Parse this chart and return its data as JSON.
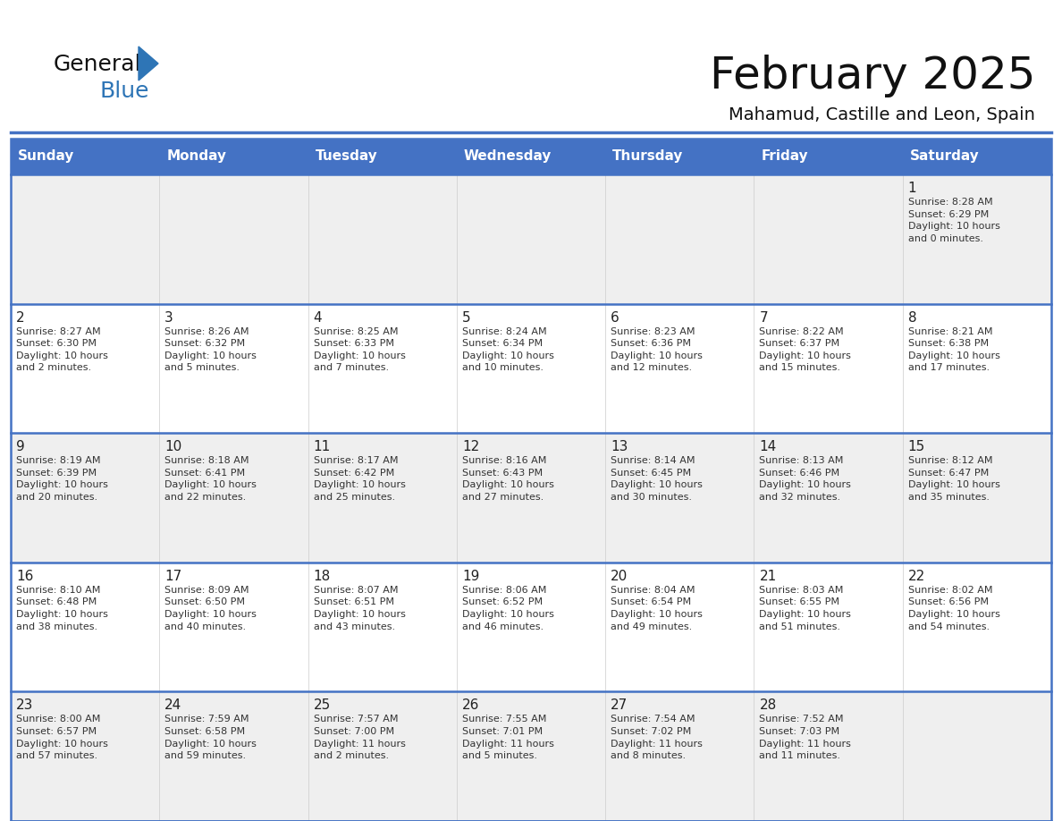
{
  "title": "February 2025",
  "subtitle": "Mahamud, Castille and Leon, Spain",
  "header_bg": "#4472C4",
  "header_text_color": "#FFFFFF",
  "cell_bg_light": "#EFEFEF",
  "cell_bg_white": "#FFFFFF",
  "separator_color": "#4472C4",
  "text_color": "#222222",
  "info_color": "#333333",
  "days_of_week": [
    "Sunday",
    "Monday",
    "Tuesday",
    "Wednesday",
    "Thursday",
    "Friday",
    "Saturday"
  ],
  "weeks": [
    [
      {
        "day": "",
        "info": ""
      },
      {
        "day": "",
        "info": ""
      },
      {
        "day": "",
        "info": ""
      },
      {
        "day": "",
        "info": ""
      },
      {
        "day": "",
        "info": ""
      },
      {
        "day": "",
        "info": ""
      },
      {
        "day": "1",
        "info": "Sunrise: 8:28 AM\nSunset: 6:29 PM\nDaylight: 10 hours\nand 0 minutes."
      }
    ],
    [
      {
        "day": "2",
        "info": "Sunrise: 8:27 AM\nSunset: 6:30 PM\nDaylight: 10 hours\nand 2 minutes."
      },
      {
        "day": "3",
        "info": "Sunrise: 8:26 AM\nSunset: 6:32 PM\nDaylight: 10 hours\nand 5 minutes."
      },
      {
        "day": "4",
        "info": "Sunrise: 8:25 AM\nSunset: 6:33 PM\nDaylight: 10 hours\nand 7 minutes."
      },
      {
        "day": "5",
        "info": "Sunrise: 8:24 AM\nSunset: 6:34 PM\nDaylight: 10 hours\nand 10 minutes."
      },
      {
        "day": "6",
        "info": "Sunrise: 8:23 AM\nSunset: 6:36 PM\nDaylight: 10 hours\nand 12 minutes."
      },
      {
        "day": "7",
        "info": "Sunrise: 8:22 AM\nSunset: 6:37 PM\nDaylight: 10 hours\nand 15 minutes."
      },
      {
        "day": "8",
        "info": "Sunrise: 8:21 AM\nSunset: 6:38 PM\nDaylight: 10 hours\nand 17 minutes."
      }
    ],
    [
      {
        "day": "9",
        "info": "Sunrise: 8:19 AM\nSunset: 6:39 PM\nDaylight: 10 hours\nand 20 minutes."
      },
      {
        "day": "10",
        "info": "Sunrise: 8:18 AM\nSunset: 6:41 PM\nDaylight: 10 hours\nand 22 minutes."
      },
      {
        "day": "11",
        "info": "Sunrise: 8:17 AM\nSunset: 6:42 PM\nDaylight: 10 hours\nand 25 minutes."
      },
      {
        "day": "12",
        "info": "Sunrise: 8:16 AM\nSunset: 6:43 PM\nDaylight: 10 hours\nand 27 minutes."
      },
      {
        "day": "13",
        "info": "Sunrise: 8:14 AM\nSunset: 6:45 PM\nDaylight: 10 hours\nand 30 minutes."
      },
      {
        "day": "14",
        "info": "Sunrise: 8:13 AM\nSunset: 6:46 PM\nDaylight: 10 hours\nand 32 minutes."
      },
      {
        "day": "15",
        "info": "Sunrise: 8:12 AM\nSunset: 6:47 PM\nDaylight: 10 hours\nand 35 minutes."
      }
    ],
    [
      {
        "day": "16",
        "info": "Sunrise: 8:10 AM\nSunset: 6:48 PM\nDaylight: 10 hours\nand 38 minutes."
      },
      {
        "day": "17",
        "info": "Sunrise: 8:09 AM\nSunset: 6:50 PM\nDaylight: 10 hours\nand 40 minutes."
      },
      {
        "day": "18",
        "info": "Sunrise: 8:07 AM\nSunset: 6:51 PM\nDaylight: 10 hours\nand 43 minutes."
      },
      {
        "day": "19",
        "info": "Sunrise: 8:06 AM\nSunset: 6:52 PM\nDaylight: 10 hours\nand 46 minutes."
      },
      {
        "day": "20",
        "info": "Sunrise: 8:04 AM\nSunset: 6:54 PM\nDaylight: 10 hours\nand 49 minutes."
      },
      {
        "day": "21",
        "info": "Sunrise: 8:03 AM\nSunset: 6:55 PM\nDaylight: 10 hours\nand 51 minutes."
      },
      {
        "day": "22",
        "info": "Sunrise: 8:02 AM\nSunset: 6:56 PM\nDaylight: 10 hours\nand 54 minutes."
      }
    ],
    [
      {
        "day": "23",
        "info": "Sunrise: 8:00 AM\nSunset: 6:57 PM\nDaylight: 10 hours\nand 57 minutes."
      },
      {
        "day": "24",
        "info": "Sunrise: 7:59 AM\nSunset: 6:58 PM\nDaylight: 10 hours\nand 59 minutes."
      },
      {
        "day": "25",
        "info": "Sunrise: 7:57 AM\nSunset: 7:00 PM\nDaylight: 11 hours\nand 2 minutes."
      },
      {
        "day": "26",
        "info": "Sunrise: 7:55 AM\nSunset: 7:01 PM\nDaylight: 11 hours\nand 5 minutes."
      },
      {
        "day": "27",
        "info": "Sunrise: 7:54 AM\nSunset: 7:02 PM\nDaylight: 11 hours\nand 8 minutes."
      },
      {
        "day": "28",
        "info": "Sunrise: 7:52 AM\nSunset: 7:03 PM\nDaylight: 11 hours\nand 11 minutes."
      },
      {
        "day": "",
        "info": ""
      }
    ]
  ],
  "logo_text_general": "General",
  "logo_text_blue": "Blue",
  "logo_triangle_color": "#2E75B6",
  "logo_general_color": "#111111",
  "logo_blue_color": "#2E75B6",
  "title_fontsize": 36,
  "subtitle_fontsize": 14,
  "header_fontsize": 11,
  "day_fontsize": 11,
  "info_fontsize": 8
}
